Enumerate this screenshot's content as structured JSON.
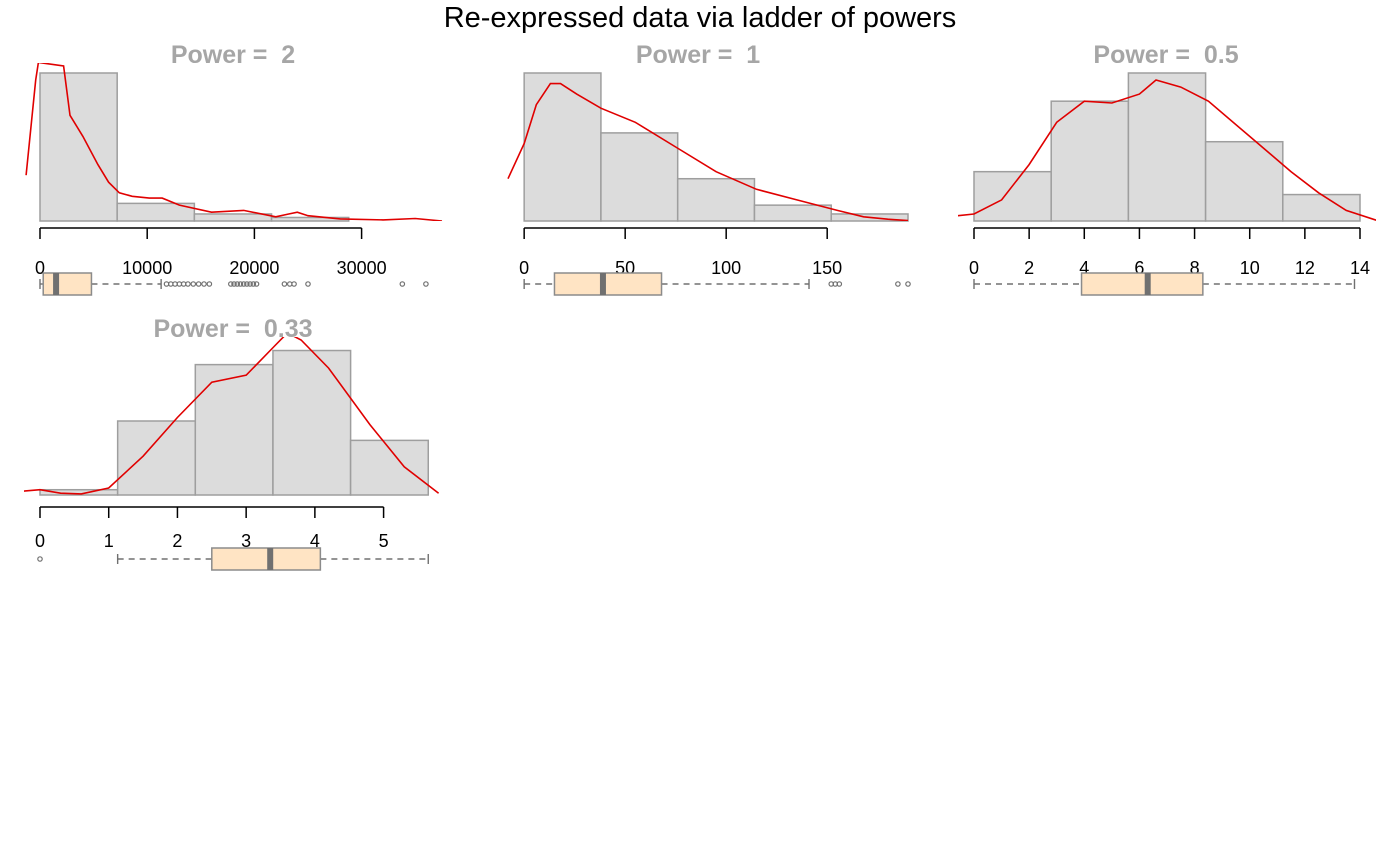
{
  "title": "Re-expressed data via ladder of powers",
  "colors": {
    "bar_fill": "#dcdcdc",
    "bar_stroke": "#9e9e9e",
    "density": "#e00000",
    "box_fill": "#ffe4c4",
    "box_stroke": "#8b8b8b",
    "median": "#707070",
    "panel_title": "#a6a6a6"
  },
  "chart_data": [
    {
      "type": "histogram",
      "title": "Power =  2",
      "xlim": [
        0,
        37500
      ],
      "ticks": [
        0,
        10000,
        20000,
        30000
      ],
      "bins": [
        0,
        7200,
        14400,
        21600,
        28800,
        36000
      ],
      "counts": [
        42,
        5,
        2,
        1,
        0
      ],
      "ymax": 42,
      "density": [
        [
          -1300,
          13
        ],
        [
          -400,
          40
        ],
        [
          -150,
          45
        ],
        [
          2200,
          44
        ],
        [
          2800,
          30
        ],
        [
          4000,
          24
        ],
        [
          5400,
          16
        ],
        [
          6400,
          11
        ],
        [
          7400,
          8
        ],
        [
          8600,
          7
        ],
        [
          10200,
          6.5
        ],
        [
          11400,
          6.5
        ],
        [
          13000,
          4.5
        ],
        [
          16000,
          2.5
        ],
        [
          19000,
          3
        ],
        [
          22000,
          1.2
        ],
        [
          23200,
          2
        ],
        [
          24000,
          2.5
        ],
        [
          25000,
          1.5
        ],
        [
          28000,
          0.6
        ],
        [
          32000,
          0.3
        ],
        [
          35000,
          0.7
        ],
        [
          37500,
          0
        ]
      ],
      "boxplot": {
        "min": 0,
        "q1": 300,
        "median": 1500,
        "q3": 4800,
        "max": 11300,
        "outliers": [
          11800,
          12200,
          12600,
          13000,
          13400,
          13800,
          14300,
          14800,
          15300,
          15800,
          17800,
          18100,
          18400,
          18700,
          19000,
          19300,
          19600,
          19900,
          20200,
          22800,
          23300,
          23700,
          25000,
          33800,
          36000
        ]
      }
    },
    {
      "type": "histogram",
      "title": "Power =  1",
      "xlim": [
        -8,
        190
      ],
      "ticks": [
        0,
        50,
        100,
        150
      ],
      "bins": [
        0,
        38,
        76,
        114,
        152,
        190
      ],
      "counts": [
        42,
        25,
        12,
        4.5,
        2
      ],
      "ymax": 42,
      "density": [
        [
          -8,
          12
        ],
        [
          0,
          22
        ],
        [
          6,
          33
        ],
        [
          13,
          39
        ],
        [
          18,
          39
        ],
        [
          26,
          36
        ],
        [
          38,
          32
        ],
        [
          55,
          28
        ],
        [
          75,
          21
        ],
        [
          95,
          14
        ],
        [
          115,
          9
        ],
        [
          135,
          6
        ],
        [
          155,
          3
        ],
        [
          168,
          1.2
        ],
        [
          180,
          0.5
        ],
        [
          190,
          0.1
        ]
      ],
      "boxplot": {
        "min": 0,
        "q1": 15,
        "median": 39,
        "q3": 68,
        "max": 141,
        "outliers": [
          152,
          154,
          156,
          185,
          190
        ]
      }
    },
    {
      "type": "histogram",
      "title": "Power =  0.5",
      "xlim": [
        0,
        14
      ],
      "ticks": [
        0,
        2,
        4,
        6,
        8,
        10,
        12,
        14
      ],
      "bins": [
        0,
        2.8,
        5.6,
        8.4,
        11.2,
        14
      ],
      "counts": [
        14,
        34,
        42,
        22.5,
        7.5
      ],
      "ymax": 42,
      "density": [
        [
          -0.6,
          1.5
        ],
        [
          0,
          2
        ],
        [
          1,
          6
        ],
        [
          2,
          16
        ],
        [
          3,
          28
        ],
        [
          4,
          34
        ],
        [
          5,
          33.5
        ],
        [
          6,
          36
        ],
        [
          6.6,
          40
        ],
        [
          7.5,
          38
        ],
        [
          8.5,
          34
        ],
        [
          10,
          24
        ],
        [
          11.5,
          14
        ],
        [
          12.5,
          8
        ],
        [
          13.5,
          3
        ],
        [
          14.6,
          0.2
        ]
      ],
      "boxplot": {
        "min": 0,
        "q1": 3.9,
        "median": 6.3,
        "q3": 8.3,
        "max": 13.8,
        "outliers": []
      }
    },
    {
      "type": "histogram",
      "title": "Power =  0.33",
      "xlim": [
        0,
        5.85
      ],
      "ticks": [
        0,
        1,
        2,
        3,
        4,
        5
      ],
      "bins": [
        0,
        1.13,
        2.26,
        3.39,
        4.52,
        5.65
      ],
      "counts": [
        1.5,
        21,
        37,
        41,
        15.5
      ],
      "ymax": 42,
      "density": [
        [
          -0.3,
          1
        ],
        [
          0,
          1.5
        ],
        [
          0.3,
          0.5
        ],
        [
          0.6,
          0.3
        ],
        [
          1,
          2
        ],
        [
          1.5,
          11
        ],
        [
          2,
          22
        ],
        [
          2.5,
          32
        ],
        [
          3,
          34
        ],
        [
          3.4,
          42
        ],
        [
          3.6,
          46
        ],
        [
          3.8,
          44
        ],
        [
          4.2,
          36
        ],
        [
          4.8,
          20
        ],
        [
          5.3,
          8
        ],
        [
          5.8,
          0.5
        ]
      ],
      "boxplot": {
        "min": 1.13,
        "q1": 2.5,
        "median": 3.35,
        "q3": 4.08,
        "max": 5.65,
        "outliers": [
          0
        ]
      }
    }
  ]
}
